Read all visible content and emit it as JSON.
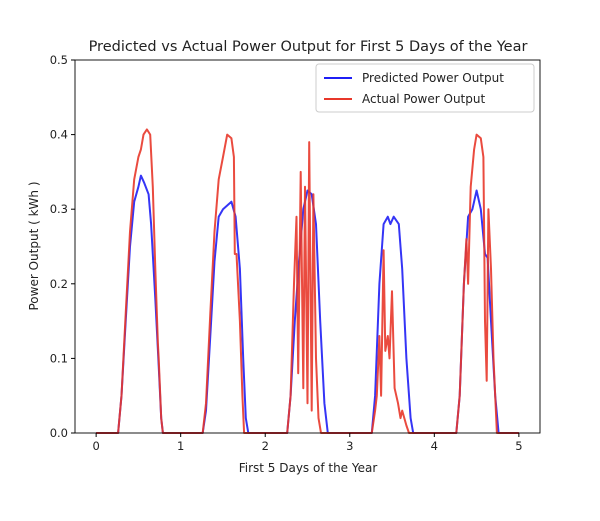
{
  "chart_data": {
    "type": "line",
    "title": "Predicted vs Actual Power Output for First 5 Days of the Year",
    "xlabel": "First 5 Days of the Year",
    "ylabel": "Power Output ( kWh )",
    "xlim": [
      -0.25,
      5.25
    ],
    "ylim": [
      0,
      0.5
    ],
    "xticks": [
      "0",
      "1",
      "2",
      "3",
      "4",
      "5"
    ],
    "yticks": [
      "0.0",
      "0.1",
      "0.2",
      "0.3",
      "0.4",
      "0.5"
    ],
    "grid": false,
    "legend_position": "top-right",
    "series": [
      {
        "name": "Predicted Power Output",
        "color": "#1f1ff5",
        "points": [
          [
            0,
            0
          ],
          [
            0.26,
            0
          ],
          [
            0.3,
            0.05
          ],
          [
            0.35,
            0.15
          ],
          [
            0.4,
            0.25
          ],
          [
            0.45,
            0.31
          ],
          [
            0.5,
            0.33
          ],
          [
            0.53,
            0.345
          ],
          [
            0.57,
            0.335
          ],
          [
            0.62,
            0.32
          ],
          [
            0.65,
            0.28
          ],
          [
            0.7,
            0.18
          ],
          [
            0.74,
            0.09
          ],
          [
            0.77,
            0.02
          ],
          [
            0.79,
            0
          ],
          [
            1.26,
            0
          ],
          [
            1.3,
            0.03
          ],
          [
            1.35,
            0.13
          ],
          [
            1.4,
            0.23
          ],
          [
            1.45,
            0.29
          ],
          [
            1.5,
            0.3
          ],
          [
            1.55,
            0.305
          ],
          [
            1.6,
            0.31
          ],
          [
            1.65,
            0.29
          ],
          [
            1.7,
            0.22
          ],
          [
            1.74,
            0.1
          ],
          [
            1.77,
            0.02
          ],
          [
            1.8,
            0
          ],
          [
            2.26,
            0
          ],
          [
            2.3,
            0.05
          ],
          [
            2.35,
            0.15
          ],
          [
            2.4,
            0.23
          ],
          [
            2.45,
            0.3
          ],
          [
            2.5,
            0.325
          ],
          [
            2.55,
            0.32
          ],
          [
            2.6,
            0.28
          ],
          [
            2.65,
            0.15
          ],
          [
            2.7,
            0.04
          ],
          [
            2.74,
            0
          ],
          [
            3.26,
            0
          ],
          [
            3.3,
            0.05
          ],
          [
            3.35,
            0.2
          ],
          [
            3.4,
            0.28
          ],
          [
            3.45,
            0.29
          ],
          [
            3.48,
            0.28
          ],
          [
            3.52,
            0.29
          ],
          [
            3.58,
            0.28
          ],
          [
            3.62,
            0.22
          ],
          [
            3.67,
            0.1
          ],
          [
            3.72,
            0.02
          ],
          [
            3.75,
            0
          ],
          [
            4.26,
            0
          ],
          [
            4.3,
            0.05
          ],
          [
            4.35,
            0.2
          ],
          [
            4.4,
            0.29
          ],
          [
            4.45,
            0.3
          ],
          [
            4.5,
            0.325
          ],
          [
            4.55,
            0.3
          ],
          [
            4.6,
            0.24
          ],
          [
            4.63,
            0.235
          ],
          [
            4.67,
            0.15
          ],
          [
            4.72,
            0.05
          ],
          [
            4.76,
            0
          ],
          [
            5,
            0
          ]
        ]
      },
      {
        "name": "Actual Power Output",
        "color": "#e8372a",
        "points": [
          [
            0,
            0
          ],
          [
            0.26,
            0
          ],
          [
            0.3,
            0.05
          ],
          [
            0.35,
            0.16
          ],
          [
            0.4,
            0.27
          ],
          [
            0.45,
            0.34
          ],
          [
            0.5,
            0.37
          ],
          [
            0.53,
            0.38
          ],
          [
            0.56,
            0.4
          ],
          [
            0.6,
            0.407
          ],
          [
            0.64,
            0.4
          ],
          [
            0.67,
            0.33
          ],
          [
            0.7,
            0.22
          ],
          [
            0.73,
            0.12
          ],
          [
            0.74,
            0.1
          ],
          [
            0.77,
            0.02
          ],
          [
            0.79,
            0
          ],
          [
            1.26,
            0
          ],
          [
            1.3,
            0.04
          ],
          [
            1.35,
            0.16
          ],
          [
            1.4,
            0.27
          ],
          [
            1.45,
            0.34
          ],
          [
            1.5,
            0.37
          ],
          [
            1.55,
            0.4
          ],
          [
            1.6,
            0.395
          ],
          [
            1.63,
            0.37
          ],
          [
            1.64,
            0.24
          ],
          [
            1.66,
            0.24
          ],
          [
            1.7,
            0.15
          ],
          [
            1.73,
            0.05
          ],
          [
            1.75,
            0
          ],
          [
            2.26,
            0
          ],
          [
            2.3,
            0.05
          ],
          [
            2.34,
            0.2
          ],
          [
            2.37,
            0.29
          ],
          [
            2.39,
            0.08
          ],
          [
            2.42,
            0.35
          ],
          [
            2.45,
            0.06
          ],
          [
            2.47,
            0.33
          ],
          [
            2.5,
            0.04
          ],
          [
            2.52,
            0.39
          ],
          [
            2.55,
            0.03
          ],
          [
            2.57,
            0.32
          ],
          [
            2.6,
            0.1
          ],
          [
            2.63,
            0.02
          ],
          [
            2.66,
            0
          ],
          [
            3.26,
            0
          ],
          [
            3.3,
            0.03
          ],
          [
            3.32,
            0.05
          ],
          [
            3.35,
            0.13
          ],
          [
            3.37,
            0.05
          ],
          [
            3.4,
            0.245
          ],
          [
            3.42,
            0.11
          ],
          [
            3.45,
            0.13
          ],
          [
            3.47,
            0.1
          ],
          [
            3.5,
            0.19
          ],
          [
            3.53,
            0.06
          ],
          [
            3.57,
            0.04
          ],
          [
            3.6,
            0.02
          ],
          [
            3.62,
            0.03
          ],
          [
            3.67,
            0.01
          ],
          [
            3.7,
            0
          ],
          [
            4.26,
            0
          ],
          [
            4.3,
            0.05
          ],
          [
            4.35,
            0.2
          ],
          [
            4.38,
            0.26
          ],
          [
            4.4,
            0.2
          ],
          [
            4.43,
            0.33
          ],
          [
            4.47,
            0.38
          ],
          [
            4.5,
            0.4
          ],
          [
            4.55,
            0.395
          ],
          [
            4.58,
            0.37
          ],
          [
            4.6,
            0.15
          ],
          [
            4.62,
            0.07
          ],
          [
            4.64,
            0.3
          ],
          [
            4.67,
            0.22
          ],
          [
            4.7,
            0.1
          ],
          [
            4.74,
            0
          ],
          [
            5,
            0
          ]
        ]
      }
    ]
  }
}
